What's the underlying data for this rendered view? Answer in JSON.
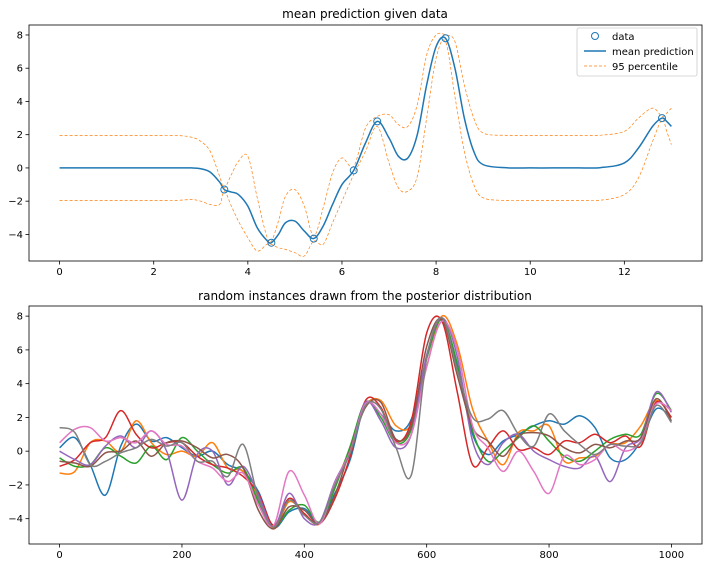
{
  "chart_data": [
    {
      "type": "line",
      "title": "mean prediction given data",
      "xlabel": "",
      "ylabel": "",
      "xlim": [
        -0.65,
        13.65
      ],
      "ylim": [
        -5.6,
        8.6
      ],
      "xticks": [
        0,
        2,
        4,
        6,
        8,
        10,
        12
      ],
      "yticks": [
        -4,
        -2,
        0,
        2,
        4,
        6,
        8
      ],
      "legend_position": "top-right",
      "observations": {
        "name": "data",
        "color": "#1f77b4",
        "x": [
          3.5,
          4.5,
          5.4,
          6.25,
          6.75,
          8.2,
          12.8
        ],
        "y": [
          -1.3,
          -4.5,
          -4.25,
          -0.15,
          2.8,
          7.8,
          3.0
        ]
      },
      "series": [
        {
          "name": "mean prediction",
          "color": "#1f77b4",
          "x": [
            0,
            0.5,
            1,
            1.5,
            2,
            2.5,
            2.8,
            3.0,
            3.2,
            3.4,
            3.5,
            3.65,
            3.8,
            4.0,
            4.2,
            4.4,
            4.5,
            4.65,
            4.8,
            5.0,
            5.2,
            5.4,
            5.6,
            5.8,
            6.0,
            6.25,
            6.5,
            6.75,
            7.0,
            7.2,
            7.4,
            7.6,
            7.8,
            8.0,
            8.2,
            8.4,
            8.6,
            8.8,
            9.0,
            9.5,
            10,
            10.5,
            11,
            11.5,
            12.0,
            12.3,
            12.6,
            12.8,
            12.9,
            13.0
          ],
          "y": [
            0,
            0,
            0,
            0,
            0,
            0,
            0,
            -0.05,
            -0.25,
            -0.85,
            -1.3,
            -1.45,
            -1.6,
            -2.3,
            -3.6,
            -4.35,
            -4.5,
            -4.0,
            -3.3,
            -3.2,
            -3.8,
            -4.25,
            -3.5,
            -2.2,
            -1.0,
            -0.15,
            1.5,
            2.8,
            1.8,
            0.7,
            0.6,
            2.0,
            5.0,
            7.3,
            7.8,
            6.0,
            3.0,
            1.0,
            0.2,
            0.01,
            0,
            0,
            0,
            0.02,
            0.3,
            1.2,
            2.5,
            3.0,
            2.8,
            2.5
          ]
        },
        {
          "name": "95 percentile",
          "color": "#ff7f0e",
          "x": [
            0,
            0.5,
            1,
            1.5,
            2,
            2.5,
            2.8,
            3.0,
            3.2,
            3.4,
            3.5,
            3.65,
            3.8,
            4.0,
            4.2,
            4.4,
            4.5,
            4.65,
            4.8,
            5.0,
            5.2,
            5.4,
            5.6,
            5.8,
            6.0,
            6.25,
            6.5,
            6.75,
            7.0,
            7.2,
            7.4,
            7.6,
            7.8,
            8.0,
            8.2,
            8.4,
            8.6,
            8.8,
            9.0,
            9.5,
            10,
            10.5,
            11,
            11.5,
            12.0,
            12.3,
            12.6,
            12.8,
            12.9,
            13.0
          ],
          "y": [
            1.96,
            1.96,
            1.96,
            1.96,
            1.96,
            1.95,
            1.85,
            1.6,
            1.0,
            -0.5,
            -1.2,
            -0.4,
            0.4,
            0.7,
            -1.8,
            -4.1,
            -4.4,
            -3.2,
            -1.7,
            -1.3,
            -2.3,
            -4.1,
            -2.4,
            -0.3,
            0.6,
            0.1,
            2.4,
            3.1,
            3.2,
            2.6,
            2.5,
            3.8,
            6.8,
            8.0,
            8.0,
            7.6,
            5.0,
            3.0,
            2.1,
            1.96,
            1.96,
            1.96,
            1.96,
            1.97,
            2.2,
            3.0,
            3.6,
            3.1,
            3.3,
            3.6
          ]
        },
        {
          "name": "95 percentile lower",
          "color": "#ff7f0e",
          "x": [
            0,
            0.5,
            1,
            1.5,
            2,
            2.5,
            2.8,
            3.0,
            3.2,
            3.4,
            3.5,
            3.65,
            3.8,
            4.0,
            4.2,
            4.4,
            4.5,
            4.65,
            4.8,
            5.0,
            5.2,
            5.4,
            5.6,
            5.8,
            6.0,
            6.25,
            6.5,
            6.75,
            7.0,
            7.2,
            7.4,
            7.6,
            7.8,
            8.0,
            8.2,
            8.4,
            8.6,
            8.8,
            9.0,
            9.5,
            10,
            10.5,
            11,
            11.5,
            12.0,
            12.3,
            12.6,
            12.8,
            12.9,
            13.0
          ],
          "y": [
            -1.96,
            -1.96,
            -1.96,
            -1.96,
            -1.96,
            -1.95,
            -1.9,
            -2.0,
            -2.2,
            -2.2,
            -1.4,
            -2.3,
            -3.2,
            -4.2,
            -5.0,
            -4.6,
            -4.6,
            -4.8,
            -4.9,
            -5.1,
            -5.3,
            -4.4,
            -4.6,
            -3.3,
            -2.0,
            -0.4,
            1.0,
            2.5,
            0.3,
            -1.2,
            -1.4,
            -0.5,
            3.0,
            6.6,
            7.6,
            4.3,
            1.0,
            -1.0,
            -1.8,
            -1.96,
            -1.96,
            -1.96,
            -1.96,
            -1.94,
            -1.6,
            -0.6,
            1.6,
            2.9,
            2.2,
            1.4
          ]
        }
      ]
    },
    {
      "type": "line",
      "title": "random instances drawn from the posterior distribution",
      "xlabel": "",
      "ylabel": "",
      "xlim": [
        -50,
        1050
      ],
      "ylim": [
        -5.5,
        8.6
      ],
      "xticks": [
        0,
        200,
        400,
        600,
        800,
        1000
      ],
      "yticks": [
        -4,
        -2,
        0,
        2,
        4,
        6,
        8
      ],
      "series": [
        {
          "color": "#1f77b4",
          "x": [
            0,
            25,
            50,
            75,
            100,
            125,
            150,
            175,
            200,
            225,
            250,
            275,
            300,
            325,
            350,
            375,
            400,
            425,
            450,
            475,
            500,
            525,
            550,
            575,
            600,
            625,
            650,
            675,
            700,
            725,
            750,
            775,
            800,
            825,
            850,
            875,
            900,
            925,
            950,
            975,
            1000
          ],
          "y": [
            0.2,
            0.8,
            -0.8,
            -2.6,
            0.3,
            1.6,
            0.6,
            0.8,
            0.2,
            -0.3,
            0.0,
            -0.8,
            -1.2,
            -2.4,
            -4.5,
            -3.6,
            -3.4,
            -4.2,
            -2.5,
            -0.5,
            2.8,
            2.2,
            1.2,
            1.9,
            5.5,
            7.8,
            5.0,
            1.0,
            -0.2,
            0.6,
            1.0,
            1.5,
            1.8,
            1.6,
            2.1,
            1.4,
            -0.4,
            -0.5,
            0.6,
            2.5,
            2.0
          ]
        },
        {
          "color": "#ff7f0e",
          "x": [
            0,
            25,
            50,
            75,
            100,
            125,
            150,
            175,
            200,
            225,
            250,
            275,
            300,
            325,
            350,
            375,
            400,
            425,
            450,
            475,
            500,
            525,
            550,
            575,
            600,
            625,
            650,
            675,
            700,
            725,
            750,
            775,
            800,
            825,
            850,
            875,
            900,
            925,
            950,
            975,
            1000
          ],
          "y": [
            -1.3,
            -1.2,
            0.5,
            0.6,
            0.0,
            1.8,
            0.5,
            -0.2,
            0.0,
            -0.3,
            0.5,
            -1.0,
            -1.2,
            -2.8,
            -4.6,
            -3.0,
            -3.7,
            -4.3,
            -2.0,
            0.2,
            2.7,
            3.0,
            1.5,
            1.6,
            5.0,
            8.0,
            6.3,
            2.5,
            0.6,
            -0.8,
            1.1,
            1.2,
            1.5,
            -0.6,
            -0.4,
            -0.3,
            0.4,
            0.5,
            1.5,
            3.0,
            2.0
          ]
        },
        {
          "color": "#2ca02c",
          "x": [
            0,
            25,
            50,
            75,
            100,
            125,
            150,
            175,
            200,
            225,
            250,
            275,
            300,
            325,
            350,
            375,
            400,
            425,
            450,
            475,
            500,
            525,
            550,
            575,
            600,
            625,
            650,
            675,
            700,
            725,
            750,
            775,
            800,
            825,
            850,
            875,
            900,
            925,
            950,
            975,
            1000
          ],
          "y": [
            -0.4,
            -0.9,
            -0.8,
            0.2,
            -0.3,
            -0.7,
            0.3,
            -0.5,
            0.8,
            0.0,
            -0.8,
            -1.3,
            -1.0,
            -3.0,
            -4.5,
            -3.5,
            -3.2,
            -4.2,
            -2.2,
            0.3,
            2.9,
            2.0,
            0.5,
            1.3,
            5.5,
            7.8,
            5.2,
            1.2,
            -0.6,
            0.0,
            0.8,
            1.5,
            0.6,
            -0.3,
            -0.6,
            0.0,
            0.7,
            1.0,
            1.0,
            3.4,
            2.4
          ]
        },
        {
          "color": "#d62728",
          "x": [
            0,
            25,
            50,
            75,
            100,
            125,
            150,
            175,
            200,
            225,
            250,
            275,
            300,
            325,
            350,
            375,
            400,
            425,
            450,
            475,
            500,
            525,
            550,
            575,
            600,
            625,
            650,
            675,
            700,
            725,
            750,
            775,
            800,
            825,
            850,
            875,
            900,
            925,
            950,
            975,
            1000
          ],
          "y": [
            -0.9,
            -0.5,
            0.5,
            0.8,
            2.4,
            1.0,
            0.2,
            0.5,
            0.5,
            -0.3,
            -0.8,
            -1.0,
            -1.5,
            -2.5,
            -4.4,
            -2.8,
            -3.7,
            -4.3,
            -2.8,
            -0.3,
            3.0,
            2.6,
            0.6,
            1.8,
            7.0,
            7.7,
            3.5,
            -0.8,
            0.2,
            1.2,
            0.1,
            0.2,
            -0.2,
            0.6,
            0.5,
            1.0,
            0.5,
            0.9,
            0.3,
            2.9,
            2.0
          ]
        },
        {
          "color": "#9467bd",
          "x": [
            0,
            25,
            50,
            75,
            100,
            125,
            150,
            175,
            200,
            225,
            250,
            275,
            300,
            325,
            350,
            375,
            400,
            425,
            450,
            475,
            500,
            525,
            550,
            575,
            600,
            625,
            650,
            675,
            700,
            725,
            750,
            775,
            800,
            825,
            850,
            875,
            900,
            925,
            950,
            975,
            1000
          ],
          "y": [
            0.0,
            -0.5,
            -0.8,
            0.3,
            0.9,
            0.2,
            1.2,
            0.0,
            -2.9,
            -0.2,
            0.0,
            -2.0,
            -0.9,
            -2.6,
            -4.5,
            -2.5,
            -4.0,
            -4.2,
            -1.8,
            0.0,
            2.9,
            1.8,
            0.2,
            1.0,
            5.7,
            7.9,
            5.6,
            0.6,
            -0.8,
            0.5,
            1.0,
            0.0,
            -0.5,
            -0.9,
            -1.0,
            -0.3,
            -1.8,
            0.2,
            0.8,
            3.5,
            2.3
          ]
        },
        {
          "color": "#8c564b",
          "x": [
            0,
            25,
            50,
            75,
            100,
            125,
            150,
            175,
            200,
            225,
            250,
            275,
            300,
            325,
            350,
            375,
            400,
            425,
            450,
            475,
            500,
            525,
            550,
            575,
            600,
            625,
            650,
            675,
            700,
            725,
            750,
            775,
            800,
            825,
            850,
            875,
            900,
            925,
            950,
            975,
            1000
          ],
          "y": [
            -0.6,
            -0.7,
            -0.9,
            -0.1,
            0.0,
            0.6,
            -0.3,
            0.5,
            0.6,
            0.2,
            -0.4,
            -0.2,
            -1.0,
            -3.5,
            -4.6,
            -3.3,
            -3.5,
            -4.3,
            -2.6,
            0.1,
            2.6,
            2.9,
            0.7,
            1.5,
            6.2,
            7.8,
            4.5,
            1.4,
            0.6,
            -0.3,
            0.9,
            1.1,
            0.9,
            0.2,
            -0.1,
            0.4,
            0.2,
            0.6,
            0.8,
            3.1,
            1.8
          ]
        },
        {
          "color": "#e377c2",
          "x": [
            0,
            25,
            50,
            75,
            100,
            125,
            150,
            175,
            200,
            225,
            250,
            275,
            300,
            325,
            350,
            375,
            400,
            425,
            450,
            475,
            500,
            525,
            550,
            575,
            600,
            625,
            650,
            675,
            700,
            725,
            750,
            775,
            800,
            825,
            850,
            875,
            900,
            925,
            950,
            975,
            1000
          ],
          "y": [
            0.5,
            1.3,
            1.4,
            0.6,
            0.8,
            0.5,
            1.2,
            0.4,
            0.3,
            -0.6,
            -1.0,
            -1.8,
            -1.3,
            -3.2,
            -4.4,
            -1.2,
            -2.6,
            -4.3,
            -1.9,
            0.0,
            2.8,
            2.2,
            0.5,
            1.0,
            5.0,
            7.7,
            6.0,
            1.5,
            0.2,
            -1.2,
            0.0,
            -1.2,
            -2.5,
            -0.3,
            -0.8,
            -0.5,
            0.4,
            0.0,
            0.6,
            2.8,
            2.4
          ]
        },
        {
          "color": "#7f7f7f",
          "x": [
            0,
            25,
            50,
            75,
            100,
            125,
            150,
            175,
            200,
            225,
            250,
            275,
            300,
            325,
            350,
            375,
            400,
            425,
            450,
            475,
            500,
            525,
            550,
            575,
            600,
            625,
            650,
            675,
            700,
            725,
            750,
            775,
            800,
            825,
            850,
            875,
            900,
            925,
            950,
            975,
            1000
          ],
          "y": [
            1.4,
            1.1,
            -0.8,
            -0.6,
            -0.1,
            0.2,
            0.7,
            0.3,
            0.5,
            -0.6,
            -0.6,
            -1.5,
            0.4,
            -2.8,
            -4.5,
            -2.9,
            -3.8,
            -4.2,
            -2.0,
            -0.1,
            2.7,
            2.5,
            0.2,
            -1.4,
            5.5,
            7.9,
            4.8,
            2.0,
            1.9,
            2.4,
            1.0,
            0.3,
            2.2,
            1.2,
            0.4,
            -0.2,
            0.4,
            0.3,
            0.5,
            2.7,
            1.7
          ]
        }
      ]
    }
  ]
}
